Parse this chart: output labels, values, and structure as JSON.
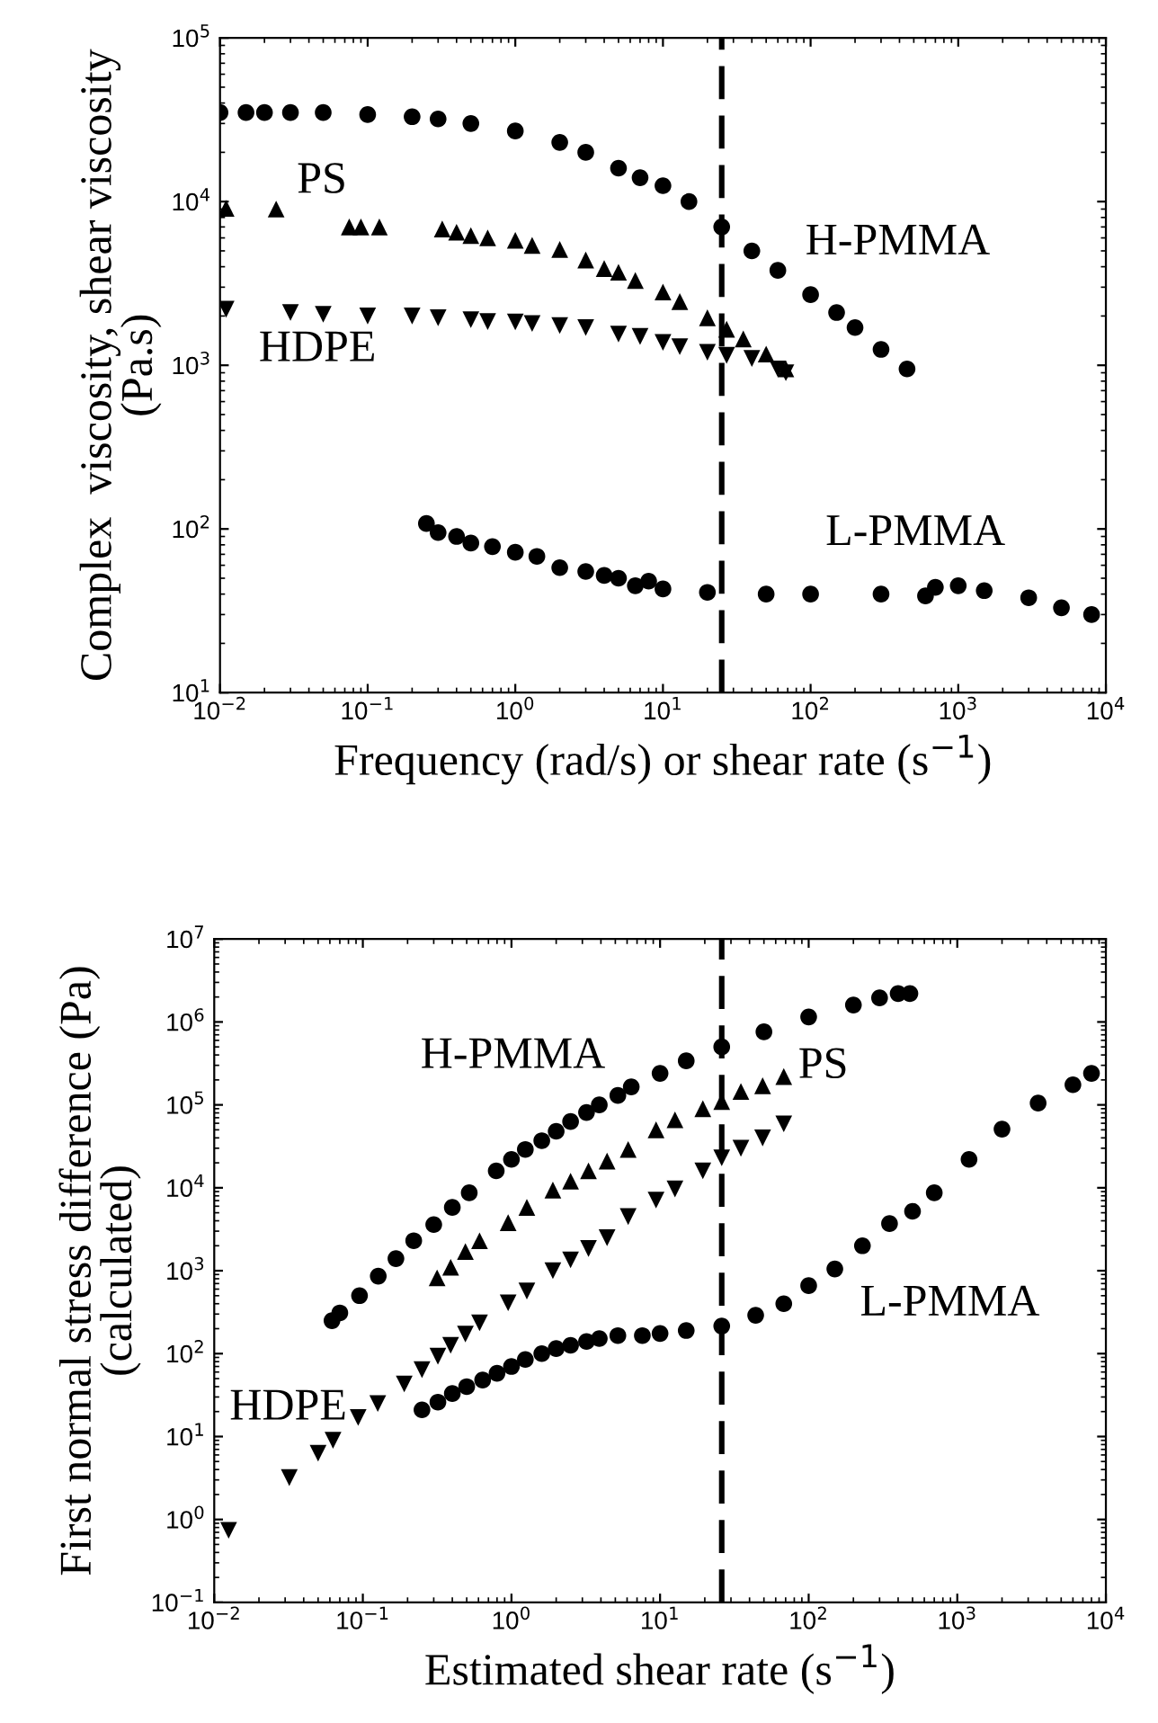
{
  "chart_data": [
    {
      "type": "scatter",
      "xlabel": "Frequency (rad/s) or shear rate (s$^{−1}$)",
      "ylabel": "Complex  viscosity, shear viscosity\n(Pa.s)",
      "log": "xy",
      "grid": false,
      "xlim": [
        0.01,
        10000
      ],
      "ylim": [
        10,
        100000
      ],
      "xticks": [
        {
          "value": 0.01,
          "label": "10$^{−2}$"
        },
        {
          "value": 0.1,
          "label": "10$^{−1}$"
        },
        {
          "value": 1,
          "label": "10$^{0}$"
        },
        {
          "value": 10,
          "label": "10$^{1}$"
        },
        {
          "value": 100,
          "label": "10$^{2}$"
        },
        {
          "value": 1000,
          "label": "10$^{3}$"
        },
        {
          "value": 10000,
          "label": "10$^{4}$"
        }
      ],
      "yticks": [
        {
          "value": 10,
          "label": "10$^{1}$"
        },
        {
          "value": 100,
          "label": "10$^{2}$"
        },
        {
          "value": 1000,
          "label": "10$^{3}$"
        },
        {
          "value": 10000,
          "label": "10$^{4}$"
        },
        {
          "value": 100000,
          "label": "10$^{5}$"
        }
      ],
      "series": [
        {
          "name": "H-PMMA",
          "color": "#000000",
          "marker": "circle",
          "x": [
            0.01,
            0.015,
            0.02,
            0.03,
            0.05,
            0.1,
            0.2,
            0.3,
            0.5,
            1,
            2,
            3,
            5,
            7,
            10,
            15,
            25,
            40,
            60,
            100,
            150,
            200,
            300,
            450
          ],
          "values": [
            35000,
            35000,
            35000,
            35000,
            35000,
            34000,
            33000,
            32000,
            30000,
            27000,
            23000,
            20000,
            16000,
            14000,
            12500,
            10000,
            7000,
            5000,
            3800,
            2700,
            2100,
            1700,
            1250,
            950
          ]
        },
        {
          "name": "PS",
          "color": "#000000",
          "marker": "triangle",
          "x": [
            0.011,
            0.024,
            0.075,
            0.09,
            0.12,
            0.32,
            0.4,
            0.5,
            0.65,
            1,
            1.3,
            2,
            3,
            4,
            5,
            6.5,
            10,
            13,
            20,
            27,
            35,
            50,
            68
          ],
          "values": [
            9100,
            9000,
            7000,
            7000,
            7000,
            6800,
            6500,
            6200,
            6000,
            5800,
            5400,
            5100,
            4400,
            3900,
            3700,
            3300,
            2800,
            2450,
            1950,
            1660,
            1450,
            1170,
            950
          ]
        },
        {
          "name": "HDPE",
          "color": "#000000",
          "marker": "triangle_down",
          "x": [
            0.011,
            0.03,
            0.05,
            0.1,
            0.2,
            0.3,
            0.5,
            0.65,
            1,
            1.3,
            2,
            3,
            5,
            7,
            10,
            13,
            20,
            27,
            40,
            60,
            68
          ],
          "values": [
            2200,
            2100,
            2050,
            2000,
            2000,
            1950,
            1900,
            1850,
            1840,
            1800,
            1750,
            1700,
            1550,
            1500,
            1380,
            1300,
            1200,
            1150,
            1100,
            950,
            900
          ]
        },
        {
          "name": "L-PMMA",
          "color": "#000000",
          "marker": "circle",
          "x": [
            0.25,
            0.3,
            0.4,
            0.5,
            0.7,
            1,
            1.4,
            2,
            3,
            4,
            5,
            6.5,
            8,
            10,
            20,
            50,
            100,
            300,
            600,
            700,
            1000,
            1500,
            3000,
            5000,
            8000
          ],
          "values": [
            108,
            95,
            90,
            82,
            78,
            72,
            68,
            58,
            55,
            52,
            50,
            45,
            48,
            43,
            41,
            40,
            40,
            40,
            39,
            44,
            45,
            42,
            38,
            33,
            30
          ]
        }
      ],
      "ref_lines": [
        {
          "axis": "x",
          "value": 25,
          "color": "#000000",
          "line_style": "dashed"
        }
      ]
    },
    {
      "type": "scatter",
      "xlabel": "Estimated shear rate (s$^{−1}$)",
      "ylabel": "First normal stress difference (Pa)\n(calculated)",
      "log": "xy",
      "grid": false,
      "xlim": [
        0.01,
        10000
      ],
      "ylim": [
        0.1,
        10000000
      ],
      "xticks": [
        {
          "value": 0.01,
          "label": "10$^{−2}$"
        },
        {
          "value": 0.1,
          "label": "10$^{−1}$"
        },
        {
          "value": 1,
          "label": "10$^{0}$"
        },
        {
          "value": 10,
          "label": "10$^{1}$"
        },
        {
          "value": 100,
          "label": "10$^{2}$"
        },
        {
          "value": 1000,
          "label": "10$^{3}$"
        },
        {
          "value": 10000,
          "label": "10$^{4}$"
        }
      ],
      "yticks": [
        {
          "value": 0.1,
          "label": "10$^{−1}$"
        },
        {
          "value": 1,
          "label": "10$^{0}$"
        },
        {
          "value": 10,
          "label": "10$^{1}$"
        },
        {
          "value": 100,
          "label": "10$^{2}$"
        },
        {
          "value": 1000,
          "label": "10$^{3}$"
        },
        {
          "value": 10000,
          "label": "10$^{4}$"
        },
        {
          "value": 100000,
          "label": "10$^{5}$"
        },
        {
          "value": 1000000,
          "label": "10$^{6}$"
        },
        {
          "value": 10000000,
          "label": "10$^{7}$"
        }
      ],
      "series": [
        {
          "name": "H-PMMA",
          "color": "#000000",
          "marker": "circle",
          "x": [
            0.062,
            0.07,
            0.095,
            0.127,
            0.167,
            0.22,
            0.3,
            0.4,
            0.52,
            0.79,
            1,
            1.24,
            1.6,
            2,
            2.5,
            3.2,
            3.9,
            5.2,
            6.4,
            10,
            15,
            26,
            50,
            100,
            200,
            300,
            400,
            480
          ],
          "values": [
            250,
            310,
            500,
            860,
            1400,
            2300,
            3600,
            5800,
            8700,
            16000,
            22000,
            29000,
            37000,
            48000,
            63000,
            81000,
            100000,
            130000,
            165000,
            240000,
            340000,
            500000,
            760000,
            1150000,
            1600000,
            1950000,
            2200000,
            2200000
          ]
        },
        {
          "name": "PS",
          "color": "#000000",
          "marker": "triangle",
          "x": [
            0.316,
            0.39,
            0.49,
            0.61,
            0.95,
            1.27,
            1.9,
            2.5,
            3.3,
            4.4,
            6.1,
            9.4,
            12.6,
            19.4,
            26,
            35,
            49,
            68
          ],
          "values": [
            820,
            1100,
            1700,
            2300,
            3800,
            5800,
            9400,
            12000,
            16000,
            21000,
            29000,
            50000,
            66000,
            90000,
            110000,
            145000,
            170000,
            220000
          ]
        },
        {
          "name": "HDPE",
          "color": "#000000",
          "marker": "triangle_down",
          "x": [
            0.0125,
            0.032,
            0.05,
            0.063,
            0.093,
            0.126,
            0.19,
            0.25,
            0.32,
            0.39,
            0.49,
            0.61,
            0.95,
            1.27,
            1.9,
            2.5,
            3.3,
            4.4,
            6.1,
            9.4,
            12.6,
            19.4,
            26,
            35,
            49,
            68
          ],
          "values": [
            0.74,
            3.2,
            6.3,
            9,
            17,
            25,
            43,
            64,
            93,
            126,
            172,
            235,
            410,
            570,
            1000,
            1350,
            1850,
            2500,
            4500,
            7100,
            9700,
            16000,
            23000,
            30000,
            40000,
            59000
          ]
        },
        {
          "name": "L-PMMA",
          "color": "#000000",
          "marker": "circle",
          "x": [
            0.25,
            0.32,
            0.4,
            0.5,
            0.64,
            0.8,
            1,
            1.24,
            1.6,
            2,
            2.5,
            3.2,
            3.9,
            5.2,
            7.6,
            10,
            15,
            26,
            44,
            68,
            100,
            150,
            230,
            350,
            500,
            700,
            1200,
            2000,
            3500,
            6000,
            8000
          ],
          "values": [
            21,
            26,
            33,
            40,
            48,
            58,
            70,
            85,
            100,
            115,
            126,
            140,
            152,
            165,
            165,
            175,
            190,
            215,
            290,
            400,
            660,
            1050,
            2000,
            3700,
            5200,
            8700,
            22000,
            51000,
            105000,
            175000,
            240000
          ]
        }
      ],
      "ref_lines": [
        {
          "axis": "x",
          "value": 26,
          "color": "#000000",
          "line_style": "dashed"
        }
      ]
    }
  ]
}
